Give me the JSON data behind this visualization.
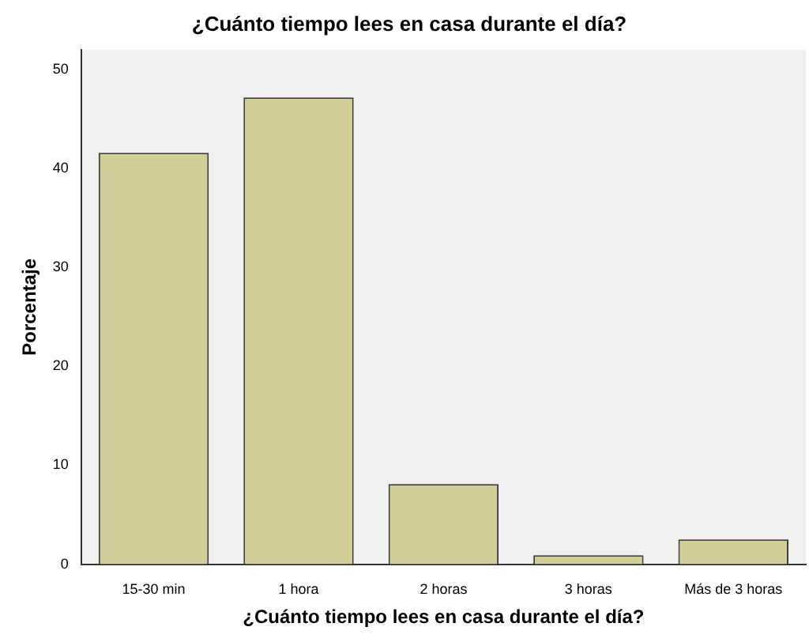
{
  "chart_data": {
    "type": "bar",
    "title": "¿Cuánto tiempo lees en casa durante el día?",
    "xlabel": "¿Cuánto tiempo lees en casa durante el día?",
    "ylabel": "Porcentaje",
    "categories": [
      "15-30 min",
      "1 hora",
      "2 horas",
      "3 horas",
      "Más de 3 horas"
    ],
    "values": [
      41.6,
      47.2,
      8.1,
      0.9,
      2.5
    ],
    "color": "#d3ce97",
    "ylim": [
      0,
      52
    ],
    "yticks": [
      0,
      10,
      20,
      30,
      40,
      50
    ],
    "grid": false,
    "legend": false
  }
}
